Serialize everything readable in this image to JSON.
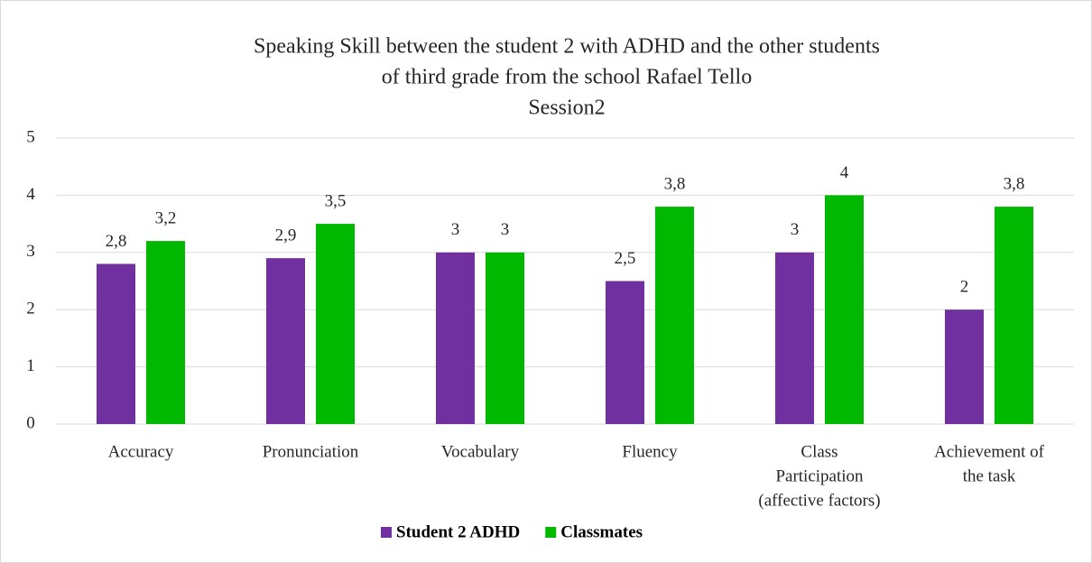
{
  "chart_data": {
    "type": "bar",
    "title": [
      "Speaking Skill between the student 2 with ADHD and the other students",
      "of  third grade from the school Rafael Tello"
    ],
    "subtitle": "Session2",
    "categories": [
      [
        "Accuracy"
      ],
      [
        "Pronunciation"
      ],
      [
        "Vocabulary"
      ],
      [
        "Fluency"
      ],
      [
        "Class",
        "Participation",
        "(affective factors)"
      ],
      [
        "Achievement of",
        "the task"
      ]
    ],
    "series": [
      {
        "name": "Student 2 ADHD",
        "color": "#7030a0",
        "values": [
          2.8,
          2.9,
          3,
          2.5,
          3,
          2
        ],
        "value_labels": [
          "2,8",
          "2,9",
          "3",
          "2,5",
          "3",
          "2"
        ]
      },
      {
        "name": "Classmates",
        "color": "#00b800",
        "values": [
          3.2,
          3.5,
          3,
          3.8,
          4,
          3.8
        ],
        "value_labels": [
          "3,2",
          "3,5",
          "3",
          "3,8",
          "4",
          "3,8"
        ]
      }
    ],
    "ylim": [
      0,
      5
    ],
    "yticks": [
      0,
      1,
      2,
      3,
      4,
      5
    ],
    "grid": true,
    "legend": "bottom"
  }
}
